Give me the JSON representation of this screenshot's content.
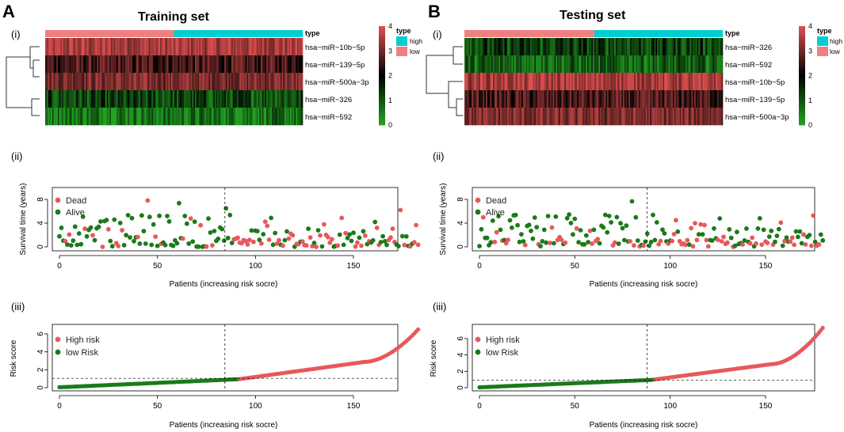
{
  "colors": {
    "high": "#00ced1",
    "low": "#f08080",
    "dead": "#e8585b",
    "alive": "#1a7a1a",
    "heat_low": "#22a222",
    "heat_mid": "#000000",
    "heat_high": "#e05050"
  },
  "panels": [
    {
      "letter": "A",
      "title": "Training set",
      "sub_i": "(i)",
      "sub_ii": "(ii)",
      "sub_iii": "(iii)",
      "heatmap": {
        "type": "heatmap",
        "annotation_label": "type",
        "groups": [
          {
            "name": "low",
            "count": 92
          },
          {
            "name": "high",
            "count": 92
          }
        ],
        "rows": [
          {
            "label": "hsa−miR−10b−5p",
            "mean": 3.5,
            "spread": 0.35
          },
          {
            "label": "hsa−miR−139−5p",
            "mean": 2.6,
            "spread": 0.45
          },
          {
            "label": "hsa−miR−500a−3p",
            "mean": 3.1,
            "spread": 0.35
          },
          {
            "label": "hsa−miR−326",
            "mean": 1.1,
            "spread": 0.5
          },
          {
            "label": "hsa−miR−592",
            "mean": 0.6,
            "spread": 0.45
          }
        ],
        "colorbar": {
          "min": 0,
          "max": 4,
          "ticks": [
            "0",
            "1",
            "2",
            "3",
            "4"
          ]
        },
        "legend": {
          "title": "type",
          "items": [
            "high",
            "low"
          ]
        }
      },
      "scatter": {
        "type": "scatter",
        "ylabel": "Survival time (years)",
        "xlabel": "Patients (increasing risk socre)",
        "xticks": [
          "0",
          "50",
          "100",
          "150"
        ],
        "yticks": [
          "0",
          "4",
          "8"
        ],
        "xlim": [
          0,
          184
        ],
        "ylim": [
          0,
          10
        ],
        "cutoff_x": 92,
        "legend": [
          "Dead",
          "Alive"
        ],
        "n": 184
      },
      "risk": {
        "type": "scatter",
        "ylabel": "Risk score",
        "xlabel": "Patients (increasing risk socre)",
        "xticks": [
          "0",
          "50",
          "100",
          "150"
        ],
        "yticks": [
          "0",
          "2",
          "4",
          "6"
        ],
        "xlim": [
          0,
          184
        ],
        "ylim": [
          0,
          6.6
        ],
        "cutoff_x": 92,
        "cutoff_y": 0.95,
        "legend": [
          "High risk",
          "low Risk"
        ],
        "n": 184,
        "max_score": 6.5
      }
    },
    {
      "letter": "B",
      "title": "Testing set",
      "sub_i": "(i)",
      "sub_ii": "(ii)",
      "sub_iii": "(iii)",
      "heatmap": {
        "type": "heatmap",
        "annotation_label": "type",
        "groups": [
          {
            "name": "low",
            "count": 91
          },
          {
            "name": "high",
            "count": 90
          }
        ],
        "rows": [
          {
            "label": "hsa−miR−326",
            "mean": 1.2,
            "spread": 0.5
          },
          {
            "label": "hsa−miR−592",
            "mean": 0.8,
            "spread": 0.45
          },
          {
            "label": "hsa−miR−10b−5p",
            "mean": 3.5,
            "spread": 0.35
          },
          {
            "label": "hsa−miR−139−5p",
            "mean": 2.6,
            "spread": 0.45
          },
          {
            "label": "hsa−miR−500a−3p",
            "mean": 3.1,
            "spread": 0.35
          }
        ],
        "colorbar": {
          "min": 0,
          "max": 4,
          "ticks": [
            "0",
            "1",
            "2",
            "3",
            "4"
          ]
        },
        "legend": {
          "title": "type",
          "items": [
            "high",
            "low"
          ]
        }
      },
      "scatter": {
        "type": "scatter",
        "ylabel": "Survival time (years)",
        "xlabel": "Patients (increasing risk socre)",
        "xticks": [
          "0",
          "50",
          "100",
          "150"
        ],
        "yticks": [
          "0",
          "4",
          "8"
        ],
        "xlim": [
          0,
          181
        ],
        "ylim": [
          0,
          10
        ],
        "cutoff_x": 92,
        "legend": [
          "Dead",
          "Alive"
        ],
        "n": 181
      },
      "risk": {
        "type": "scatter",
        "ylabel": "Risk score",
        "xlabel": "Patients (increasing risk socre)",
        "xticks": [
          "0",
          "50",
          "100",
          "150"
        ],
        "yticks": [
          "0",
          "2",
          "4",
          "6"
        ],
        "xlim": [
          0,
          181
        ],
        "ylim": [
          0,
          7.4
        ],
        "cutoff_x": 92,
        "cutoff_y": 0.95,
        "legend": [
          "High risk",
          "low Risk"
        ],
        "n": 181,
        "max_score": 7.3
      }
    }
  ]
}
